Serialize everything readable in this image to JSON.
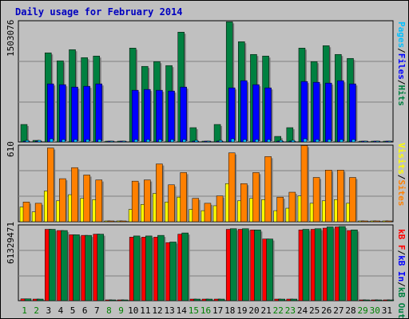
{
  "title": "Daily usage for February 2014",
  "colors": {
    "pages": "#00c0ff",
    "files": "#0000ff",
    "hits": "#008040",
    "sites": "#ff8000",
    "visits": "#ffff00",
    "kbin": "#ff0000",
    "kbout": "#008040",
    "background": "#c0c0c0",
    "plot": "#c0c0c0",
    "grid": "#808080",
    "weekday_label": "#000000",
    "weekend_label": "#008000"
  },
  "legend": {
    "top": [
      {
        "text": "Pages",
        "color": "#00c0ff"
      },
      {
        "text": "/",
        "color": "#000000"
      },
      {
        "text": "Files",
        "color": "#0000ff"
      },
      {
        "text": "/",
        "color": "#000000"
      },
      {
        "text": "Hits",
        "color": "#008040"
      }
    ],
    "middle": [
      {
        "text": "Visits",
        "color": "#ffff00"
      },
      {
        "text": "/",
        "color": "#000000"
      },
      {
        "text": "Sites",
        "color": "#ff8000"
      }
    ],
    "bottom": [
      {
        "text": "kB F",
        "color": "#ff0000"
      },
      {
        "text": "/",
        "color": "#000000"
      },
      {
        "text": "kB In",
        "color": "#0000ff"
      },
      {
        "text": "/",
        "color": "#000000"
      },
      {
        "text": "kB Out",
        "color": "#008040"
      }
    ]
  },
  "chart_data": [
    {
      "type": "bar",
      "name": "Hits / Files / Pages",
      "ymax_label": "1503076",
      "ylim": [
        0,
        1503076
      ],
      "grid": true,
      "categories": [
        "1",
        "2",
        "3",
        "4",
        "5",
        "6",
        "7",
        "8",
        "9",
        "10",
        "11",
        "12",
        "13",
        "14",
        "15",
        "16",
        "17",
        "18",
        "19",
        "20",
        "21",
        "22",
        "23",
        "24",
        "25",
        "26",
        "27",
        "28",
        "29",
        "30",
        "31"
      ],
      "series": [
        {
          "name": "Hits",
          "color": "#008040",
          "values": [
            220000,
            20000,
            1120000,
            1020000,
            1160000,
            1060000,
            1080000,
            0,
            0,
            1180000,
            950000,
            1010000,
            960000,
            1380000,
            180000,
            0,
            220000,
            1510000,
            1260000,
            1100000,
            1080000,
            70000,
            180000,
            1180000,
            1010000,
            1210000,
            1100000,
            1050000,
            0,
            0,
            0
          ]
        },
        {
          "name": "Files",
          "color": "#0000ff",
          "values": [
            0,
            0,
            730000,
            720000,
            690000,
            700000,
            730000,
            0,
            0,
            650000,
            660000,
            650000,
            640000,
            690000,
            0,
            0,
            0,
            680000,
            770000,
            720000,
            680000,
            0,
            0,
            760000,
            750000,
            740000,
            770000,
            730000,
            0,
            0,
            0
          ]
        },
        {
          "name": "Pages",
          "color": "#00c0ff",
          "values": [
            12000,
            8000,
            40000,
            30000,
            30000,
            30000,
            30000,
            0,
            0,
            30000,
            30000,
            30000,
            30000,
            30000,
            10000,
            0,
            12000,
            40000,
            30000,
            30000,
            30000,
            5000,
            10000,
            40000,
            30000,
            30000,
            30000,
            30000,
            0,
            0,
            0
          ]
        }
      ]
    },
    {
      "type": "bar",
      "name": "Sites / Visits",
      "ymax_label": "610",
      "ylim": [
        0,
        610
      ],
      "grid": true,
      "categories": [
        "1",
        "2",
        "3",
        "4",
        "5",
        "6",
        "7",
        "8",
        "9",
        "10",
        "11",
        "12",
        "13",
        "14",
        "15",
        "16",
        "17",
        "18",
        "19",
        "20",
        "21",
        "22",
        "23",
        "24",
        "25",
        "26",
        "27",
        "28",
        "29",
        "30",
        "31"
      ],
      "series": [
        {
          "name": "Visits",
          "color": "#ffff00",
          "values": [
            120,
            80,
            250,
            170,
            220,
            190,
            180,
            0,
            0,
            100,
            140,
            230,
            160,
            200,
            100,
            90,
            130,
            310,
            170,
            190,
            180,
            90,
            110,
            210,
            150,
            170,
            180,
            150,
            0,
            0,
            0
          ]
        },
        {
          "name": "Sites",
          "color": "#ff8000",
          "values": [
            160,
            150,
            600,
            350,
            440,
            380,
            340,
            0,
            0,
            330,
            340,
            470,
            300,
            400,
            190,
            150,
            210,
            560,
            310,
            400,
            530,
            200,
            240,
            620,
            360,
            420,
            420,
            360,
            0,
            0,
            0
          ]
        }
      ]
    },
    {
      "type": "bar",
      "name": "kB F / kB In / kB Out",
      "ymax_label": "61329471",
      "ylim": [
        0,
        61329471
      ],
      "grid": true,
      "categories": [
        "1",
        "2",
        "3",
        "4",
        "5",
        "6",
        "7",
        "8",
        "9",
        "10",
        "11",
        "12",
        "13",
        "14",
        "15",
        "16",
        "17",
        "18",
        "19",
        "20",
        "21",
        "22",
        "23",
        "24",
        "25",
        "26",
        "27",
        "28",
        "29",
        "30",
        "31"
      ],
      "series": [
        {
          "name": "kB F",
          "color": "#ff0000",
          "values": [
            1500000,
            1000000,
            59000000,
            58000000,
            54500000,
            54000000,
            55000000,
            0,
            0,
            52500000,
            52500000,
            52500000,
            48000000,
            55000000,
            1000000,
            700000,
            1200000,
            59000000,
            59000000,
            58500000,
            51000000,
            500000,
            500000,
            58500000,
            59000000,
            60000000,
            61000000,
            58000000,
            0,
            0,
            0
          ]
        },
        {
          "name": "kB Out",
          "color": "#008040",
          "values": [
            1500000,
            1000000,
            59000000,
            58000000,
            54500000,
            54000000,
            55000000,
            0,
            0,
            53500000,
            53500000,
            54000000,
            48500000,
            56000000,
            1000000,
            700000,
            1200000,
            59500000,
            59500000,
            58500000,
            51000000,
            500000,
            500000,
            59000000,
            59500000,
            61000000,
            61329471,
            58500000,
            0,
            0,
            0
          ]
        }
      ]
    }
  ]
}
